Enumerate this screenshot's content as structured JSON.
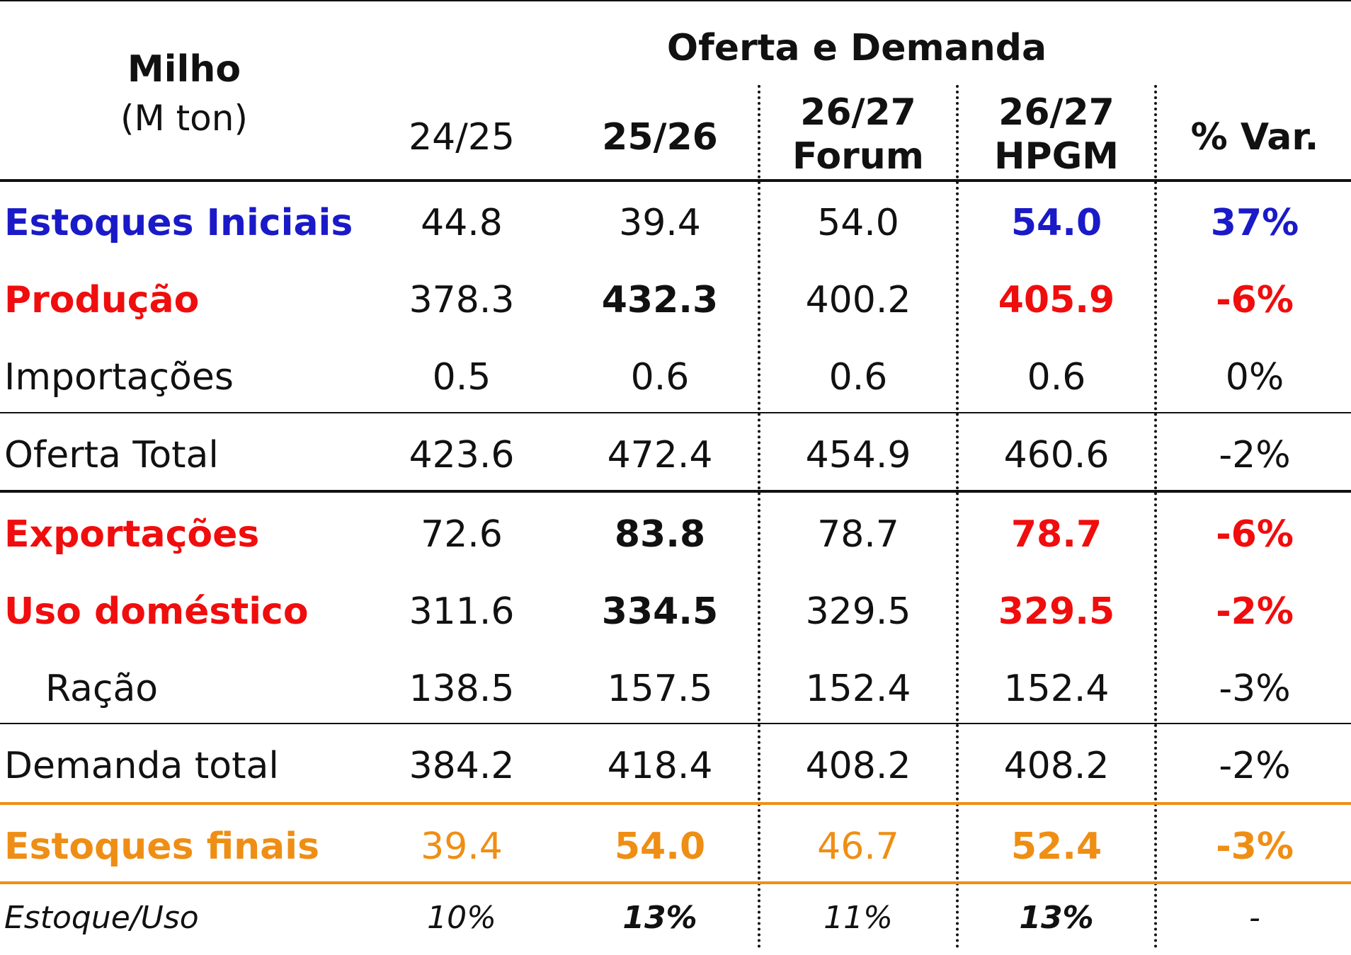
{
  "header": {
    "title": "Milho",
    "unit": "(M ton)",
    "group_title": "Oferta e Demanda",
    "columns": [
      {
        "line1": "24/25",
        "line2": ""
      },
      {
        "line1": "25/26",
        "line2": ""
      },
      {
        "line1": "26/27",
        "line2": "Forum"
      },
      {
        "line1": "26/27",
        "line2": "HPGM"
      },
      {
        "line1": "% Var.",
        "line2": ""
      }
    ]
  },
  "rows": [
    {
      "label": "Estoques Iniciais",
      "values": [
        "44.8",
        "39.4",
        "54.0",
        "54.0",
        "37%"
      ]
    },
    {
      "label": "Produção",
      "values": [
        "378.3",
        "432.3",
        "400.2",
        "405.9",
        "-6%"
      ]
    },
    {
      "label": "Importações",
      "values": [
        "0.5",
        "0.6",
        "0.6",
        "0.6",
        "0%"
      ]
    },
    {
      "label": "Oferta Total",
      "values": [
        "423.6",
        "472.4",
        "454.9",
        "460.6",
        "-2%"
      ]
    },
    {
      "label": "Exportações",
      "values": [
        "72.6",
        "83.8",
        "78.7",
        "78.7",
        "-6%"
      ]
    },
    {
      "label": "Uso doméstico",
      "values": [
        "311.6",
        "334.5",
        "329.5",
        "329.5",
        "-2%"
      ]
    },
    {
      "label": "Ração",
      "values": [
        "138.5",
        "157.5",
        "152.4",
        "152.4",
        "-3%"
      ]
    },
    {
      "label": "Demanda total",
      "values": [
        "384.2",
        "418.4",
        "408.2",
        "408.2",
        "-2%"
      ]
    },
    {
      "label": "Estoques finais",
      "values": [
        "39.4",
        "54.0",
        "46.7",
        "52.4",
        "-3%"
      ]
    },
    {
      "label": "Estoque/Uso",
      "values": [
        "10%",
        "13%",
        "11%",
        "13%",
        "-"
      ]
    }
  ],
  "colors": {
    "blue": "#1a1ac8",
    "red": "#f00d0d",
    "orange": "#ef8e14",
    "text": "#111111"
  }
}
